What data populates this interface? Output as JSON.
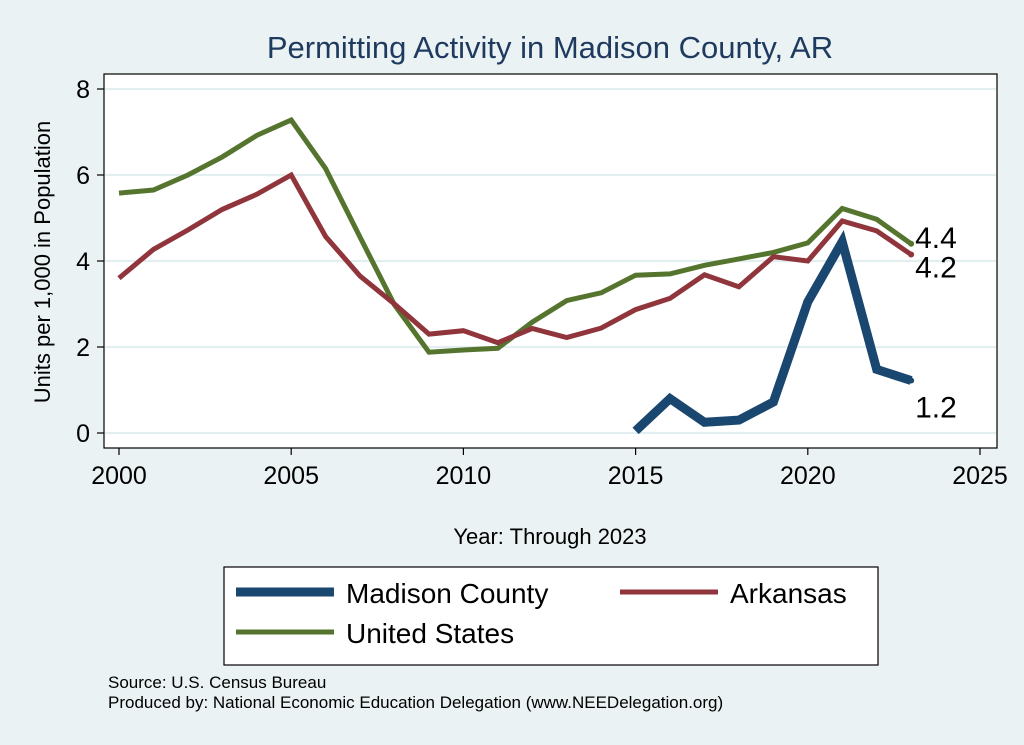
{
  "chart_data": {
    "type": "line",
    "title": "Permitting Activity in Madison County, AR",
    "xlabel": "Year: Through 2023",
    "ylabel": "Units per 1,000 in Population",
    "xlim": [
      2000,
      2025
    ],
    "ylim": [
      0,
      8
    ],
    "xticks": [
      2000,
      2005,
      2010,
      2015,
      2020,
      2025
    ],
    "yticks": [
      0,
      2,
      4,
      6,
      8
    ],
    "grid": true,
    "series": [
      {
        "name": "Madison County",
        "color": "#1a476f",
        "end_label": "1.2",
        "x": [
          2015,
          2016,
          2017,
          2018,
          2019,
          2020,
          2021,
          2022,
          2023
        ],
        "values": [
          0.05,
          0.8,
          0.25,
          0.3,
          0.72,
          3.05,
          4.45,
          1.48,
          1.22
        ]
      },
      {
        "name": "Arkansas",
        "color": "#90353b",
        "end_label": "4.2",
        "x": [
          2000,
          2001,
          2002,
          2003,
          2004,
          2005,
          2006,
          2007,
          2008,
          2009,
          2010,
          2011,
          2012,
          2013,
          2014,
          2015,
          2016,
          2017,
          2018,
          2019,
          2020,
          2021,
          2022,
          2023
        ],
        "values": [
          3.6,
          4.27,
          4.72,
          5.2,
          5.55,
          6.0,
          4.57,
          3.65,
          3.0,
          2.3,
          2.38,
          2.1,
          2.43,
          2.22,
          2.44,
          2.87,
          3.13,
          3.68,
          3.4,
          4.1,
          4.0,
          4.93,
          4.7,
          4.15
        ]
      },
      {
        "name": "United States",
        "color": "#55752f",
        "end_label": "4.4",
        "x": [
          2000,
          2001,
          2002,
          2003,
          2004,
          2005,
          2006,
          2007,
          2008,
          2009,
          2010,
          2011,
          2012,
          2013,
          2014,
          2015,
          2016,
          2017,
          2018,
          2019,
          2020,
          2021,
          2022,
          2023
        ],
        "values": [
          5.58,
          5.65,
          6.0,
          6.42,
          6.92,
          7.28,
          6.15,
          4.55,
          2.98,
          1.88,
          1.93,
          1.97,
          2.58,
          3.08,
          3.26,
          3.67,
          3.7,
          3.9,
          4.05,
          4.2,
          4.42,
          5.22,
          4.97,
          4.4
        ]
      }
    ],
    "legend": [
      "Madison County",
      "Arkansas",
      "United States"
    ],
    "legend_position": "bottom"
  },
  "footer": {
    "source": "Source: U.S. Census Bureau",
    "produced_by": "Produced by: National Economic Education Delegation (www.NEEDelegation.org)"
  }
}
